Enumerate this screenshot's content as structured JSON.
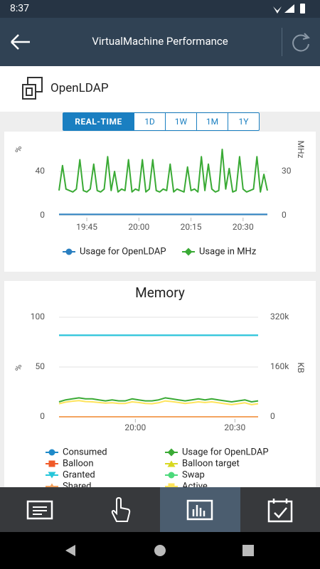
{
  "status_bar": {
    "time": "8:37"
  },
  "header": {
    "title": "VirtualMachine Performance"
  },
  "vm": {
    "name": "OpenLDAP"
  },
  "range_tabs": [
    "REAL-TIME",
    "1D",
    "1W",
    "1M",
    "1Y"
  ],
  "chart_data": [
    {
      "type": "line",
      "ylabel": "%",
      "y2label": "MHz",
      "x": [
        "19:37",
        "19:38",
        "19:39",
        "19:40",
        "19:41",
        "19:42",
        "19:43",
        "19:44",
        "19:45",
        "19:46",
        "19:47",
        "19:48",
        "19:49",
        "19:50",
        "19:51",
        "19:52",
        "19:53",
        "19:54",
        "19:55",
        "19:56",
        "19:57",
        "19:58",
        "19:59",
        "20:00",
        "20:01",
        "20:02",
        "20:03",
        "20:04",
        "20:05",
        "20:06",
        "20:07",
        "20:08",
        "20:09",
        "20:10",
        "20:11",
        "20:12",
        "20:13",
        "20:14",
        "20:15",
        "20:16",
        "20:17",
        "20:18",
        "20:19",
        "20:20",
        "20:21",
        "20:22",
        "20:23",
        "20:24",
        "20:25",
        "20:26",
        "20:27",
        "20:28",
        "20:29",
        "20:30",
        "20:31",
        "20:32",
        "20:33",
        "20:34",
        "20:35",
        "20:36",
        "20:37"
      ],
      "xlim": [
        "19:37",
        "20:37"
      ],
      "xticks": [
        "19:45",
        "20:00",
        "20:15",
        "20:30"
      ],
      "ylim": [
        0,
        60
      ],
      "yticks": [
        0,
        40
      ],
      "y2lim": [
        0,
        45
      ],
      "y2ticks": [
        0,
        30
      ],
      "grid": true,
      "series": [
        {
          "name": "Usage for OpenLDAP",
          "color": "#2a7fc0",
          "marker": "circle",
          "values": [
            1,
            1,
            1,
            1,
            1,
            1,
            1,
            1,
            1,
            1,
            1,
            1,
            1,
            1,
            1,
            1,
            1,
            1,
            1,
            1,
            1,
            1,
            1,
            1,
            1,
            1,
            1,
            1,
            1,
            1,
            1,
            1,
            1,
            1,
            1,
            1,
            1,
            1,
            1,
            1,
            1,
            1,
            1,
            1,
            1,
            1,
            1,
            1,
            1,
            1,
            1,
            1,
            1,
            1,
            1,
            1,
            1,
            1,
            1,
            1,
            1
          ]
        },
        {
          "name": "Usage in MHz",
          "color": "#3aaa35",
          "marker": "diamond",
          "axis": "y2",
          "values": [
            17,
            34,
            18,
            17,
            16,
            18,
            38,
            17,
            16,
            18,
            35,
            17,
            16,
            18,
            40,
            17,
            30,
            16,
            18,
            17,
            38,
            16,
            18,
            17,
            38,
            16,
            18,
            38,
            17,
            16,
            18,
            17,
            35,
            16,
            18,
            17,
            16,
            33,
            17,
            18,
            16,
            40,
            17,
            35,
            18,
            16,
            17,
            45,
            18,
            32,
            16,
            17,
            40,
            18,
            16,
            17,
            18,
            40,
            16,
            28,
            17
          ]
        }
      ]
    },
    {
      "type": "line",
      "title": "Memory",
      "ylabel": "%",
      "y2label": "KB",
      "x": [
        "19:37",
        "19:39",
        "19:41",
        "19:43",
        "19:45",
        "19:47",
        "19:49",
        "19:51",
        "19:53",
        "19:55",
        "19:57",
        "19:59",
        "20:01",
        "20:03",
        "20:05",
        "20:07",
        "20:09",
        "20:11",
        "20:13",
        "20:15",
        "20:17",
        "20:19",
        "20:21",
        "20:23",
        "20:25",
        "20:27",
        "20:29",
        "20:31",
        "20:33",
        "20:35",
        "20:37"
      ],
      "xlim": [
        "19:37",
        "20:37"
      ],
      "xticks": [
        "20:00",
        "20:30"
      ],
      "ylim": [
        0,
        100
      ],
      "yticks": [
        0,
        50,
        100
      ],
      "y2lim": [
        0,
        320000
      ],
      "y2ticks": [
        0,
        {
          "value": 160000,
          "label": "160k"
        },
        {
          "value": 320000,
          "label": "320k"
        }
      ],
      "grid": true,
      "series": [
        {
          "name": "Consumed",
          "color": "#1f8ac9",
          "marker": "circle",
          "axis": "y2",
          "values": [
            262000,
            262000,
            262000,
            262000,
            262000,
            262000,
            262000,
            262000,
            262000,
            262000,
            262000,
            262000,
            262000,
            262000,
            262000,
            262000,
            262000,
            262000,
            262000,
            262000,
            262000,
            262000,
            262000,
            262000,
            262000,
            262000,
            262000,
            262000,
            262000,
            262000,
            262000
          ]
        },
        {
          "name": "Usage for OpenLDAP",
          "color": "#3aaa35",
          "marker": "diamond",
          "values": [
            15,
            17,
            18,
            19,
            18,
            18,
            17,
            16,
            17,
            16,
            16,
            18,
            17,
            16,
            16,
            17,
            19,
            18,
            17,
            16,
            17,
            18,
            17,
            18,
            17,
            16,
            15,
            16,
            17,
            15,
            16
          ]
        },
        {
          "name": "Balloon",
          "color": "#f05a28",
          "marker": "square",
          "axis": "y2",
          "values": [
            0,
            0,
            0,
            0,
            0,
            0,
            0,
            0,
            0,
            0,
            0,
            0,
            0,
            0,
            0,
            0,
            0,
            0,
            0,
            0,
            0,
            0,
            0,
            0,
            0,
            0,
            0,
            0,
            0,
            0,
            0
          ]
        },
        {
          "name": "Balloon target",
          "color": "#d8d820",
          "marker": "triangle-up",
          "axis": "y2",
          "values": [
            0,
            0,
            0,
            0,
            0,
            0,
            0,
            0,
            0,
            0,
            0,
            0,
            0,
            0,
            0,
            0,
            0,
            0,
            0,
            0,
            0,
            0,
            0,
            0,
            0,
            0,
            0,
            0,
            0,
            0,
            0
          ]
        },
        {
          "name": "Granted",
          "color": "#26c6da",
          "marker": "triangle-down",
          "axis": "y2",
          "values": [
            262000,
            262000,
            262000,
            262000,
            262000,
            262000,
            262000,
            262000,
            262000,
            262000,
            262000,
            262000,
            262000,
            262000,
            262000,
            262000,
            262000,
            262000,
            262000,
            262000,
            262000,
            262000,
            262000,
            262000,
            262000,
            262000,
            262000,
            262000,
            262000,
            262000,
            262000
          ]
        },
        {
          "name": "Swap",
          "color": "#4cd97b",
          "marker": "circle",
          "axis": "y2",
          "values": [
            0,
            0,
            0,
            0,
            0,
            0,
            0,
            0,
            0,
            0,
            0,
            0,
            0,
            0,
            0,
            0,
            0,
            0,
            0,
            0,
            0,
            0,
            0,
            0,
            0,
            0,
            0,
            0,
            0,
            0,
            0
          ]
        },
        {
          "name": "Shared",
          "color": "#f4a460",
          "marker": "triangle-up",
          "axis": "y2",
          "values": [
            0,
            0,
            0,
            0,
            0,
            0,
            0,
            0,
            0,
            0,
            0,
            0,
            0,
            0,
            0,
            0,
            0,
            0,
            0,
            0,
            0,
            0,
            0,
            0,
            0,
            0,
            0,
            0,
            0,
            0,
            0
          ]
        },
        {
          "name": "Active",
          "color": "#ffe45c",
          "marker": "square",
          "axis": "y2",
          "values": [
            42000,
            47000,
            50000,
            52000,
            49000,
            48000,
            46000,
            44000,
            45000,
            43000,
            43000,
            48000,
            46000,
            43000,
            42000,
            45000,
            51000,
            49000,
            46000,
            43000,
            45000,
            48000,
            46000,
            48000,
            45000,
            42000,
            39000,
            42000,
            45000,
            39000,
            42000
          ]
        }
      ]
    }
  ]
}
